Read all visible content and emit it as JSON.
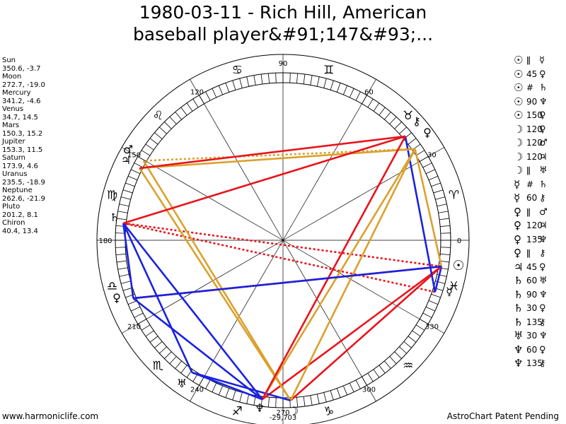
{
  "title": {
    "line1": "1980-03-11 - Rich Hill, American",
    "line2": "baseball player&#91;147&#93;..."
  },
  "planet_positions": [
    {
      "name": "Sun",
      "values": "350.6, -3.7"
    },
    {
      "name": "Moon",
      "values": "272.7, -19.0"
    },
    {
      "name": "Mercury",
      "values": "341.2, -4.6"
    },
    {
      "name": "Venus",
      "values": "34.7, 14.5"
    },
    {
      "name": "Mars",
      "values": "150.3, 15.2"
    },
    {
      "name": "Jupiter",
      "values": "153.3, 11.5"
    },
    {
      "name": "Saturn",
      "values": "173.9, 4.6"
    },
    {
      "name": "Uranus",
      "values": "235.5, -18.9"
    },
    {
      "name": "Neptune",
      "values": "262.6, -21.9"
    },
    {
      "name": "Pluto",
      "values": "201.2, 8.1"
    },
    {
      "name": "Chiron",
      "values": "40.4, 13.4"
    }
  ],
  "aspects": [
    {
      "p1": "☉",
      "sym": "ǁ",
      "p2": "☿"
    },
    {
      "p1": "☉",
      "sym": "45",
      "p2": "♀"
    },
    {
      "p1": "☉",
      "sym": "#",
      "p2": "♄"
    },
    {
      "p1": "☉",
      "sym": "90",
      "p2": "♆"
    },
    {
      "p1": "☉",
      "sym": "150",
      "p2": "♀"
    },
    {
      "p1": "☽",
      "sym": "120",
      "p2": "♀"
    },
    {
      "p1": "☽",
      "sym": "120",
      "p2": "♂"
    },
    {
      "p1": "☽",
      "sym": "120",
      "p2": "♃"
    },
    {
      "p1": "☽",
      "sym": "ǁ",
      "p2": "♅"
    },
    {
      "p1": "☿",
      "sym": "#",
      "p2": "♄"
    },
    {
      "p1": "☿",
      "sym": "60",
      "p2": "⚷"
    },
    {
      "p1": "♀",
      "sym": "ǁ",
      "p2": "♂"
    },
    {
      "p1": "♀",
      "sym": "120",
      "p2": "♃"
    },
    {
      "p1": "♀",
      "sym": "135",
      "p2": "♆"
    },
    {
      "p1": "♀",
      "sym": "ǁ",
      "p2": "⚷"
    },
    {
      "p1": "♃",
      "sym": "45",
      "p2": "♀"
    },
    {
      "p1": "♄",
      "sym": "60",
      "p2": "♅"
    },
    {
      "p1": "♄",
      "sym": "90",
      "p2": "♆"
    },
    {
      "p1": "♄",
      "sym": "30",
      "p2": "♀"
    },
    {
      "p1": "♄",
      "sym": "135",
      "p2": "⚷"
    },
    {
      "p1": "♅",
      "sym": "30",
      "p2": "♆"
    },
    {
      "p1": "♆",
      "sym": "60",
      "p2": "♀"
    },
    {
      "p1": "♆",
      "sym": "135",
      "p2": "⚷"
    }
  ],
  "wheel": {
    "degree_labels": [
      "0",
      "30",
      "60",
      "90",
      "120",
      "150",
      "180",
      "210",
      "240",
      "270",
      "300",
      "330"
    ],
    "sign_glyphs": [
      "♈",
      "♉",
      "♊",
      "♋",
      "♌",
      "♍",
      "♎",
      "♏",
      "♐",
      "♑",
      "♒",
      "♓"
    ],
    "planet_glyphs": {
      "sun": "☉",
      "moon": "☽",
      "mercury": "☿",
      "venus": "♀",
      "mars": "♂",
      "jupiter": "♃",
      "saturn": "♄",
      "uranus": "♅",
      "neptune": "♆",
      "pluto": "♀",
      "chiron": "⚷"
    },
    "neptune_label": "-29,703",
    "colors": {
      "red": "#e8141c",
      "blue": "#1a22e0",
      "gold": "#dba12e"
    }
  },
  "footer": {
    "left": "www.harmoniclife.com",
    "right": "AstroChart Patent Pending"
  }
}
